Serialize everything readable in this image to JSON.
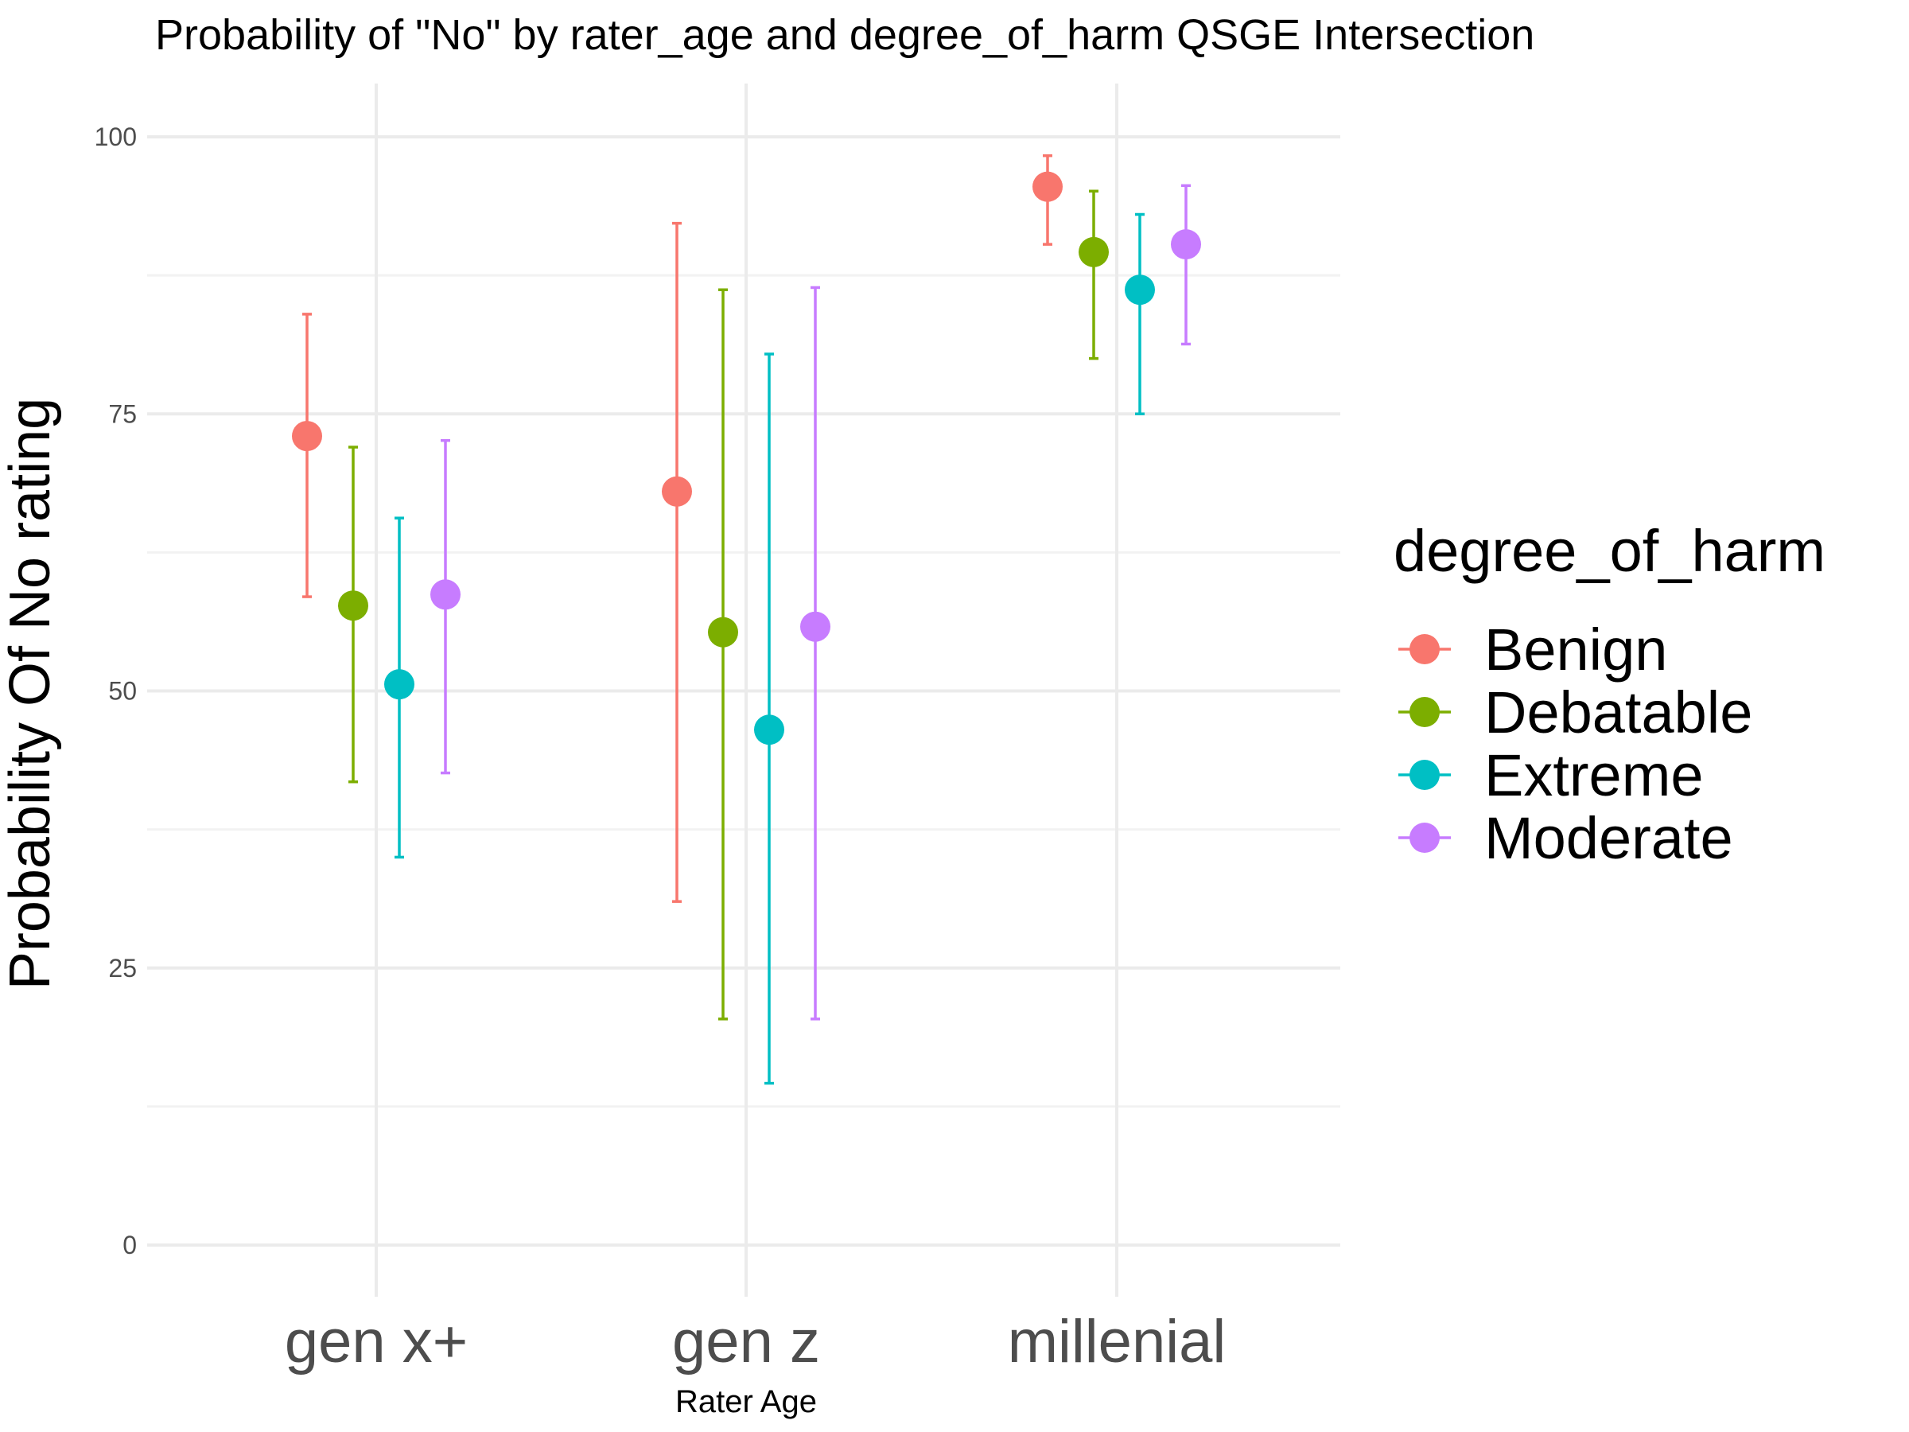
{
  "chart_data": {
    "type": "scatter",
    "title": "Probability of \"No\" by rater_age and  degree_of_harm  QSGE Intersection",
    "xlabel": "Rater Age",
    "ylabel": "Probability Of No rating",
    "categories": [
      "gen x+",
      "gen z",
      "millenial"
    ],
    "ylim": [
      -5,
      105
    ],
    "y_ticks": [
      0,
      25,
      50,
      75,
      100
    ],
    "grid": true,
    "legend_title": "degree_of_harm",
    "legend_position": "right",
    "series": [
      {
        "name": "Benign",
        "color": "#F8766D",
        "values": [
          73,
          68,
          95.5
        ],
        "lower": [
          58.5,
          31,
          90.3
        ],
        "upper": [
          84,
          92.2,
          98.3
        ]
      },
      {
        "name": "Debatable",
        "color": "#7CAE00",
        "values": [
          57.7,
          55.3,
          89.6
        ],
        "lower": [
          41.8,
          20.4,
          80
        ],
        "upper": [
          72,
          86.2,
          95.1
        ]
      },
      {
        "name": "Extreme",
        "color": "#00BFC4",
        "values": [
          50.6,
          46.5,
          86.2
        ],
        "lower": [
          35,
          14.6,
          75
        ],
        "upper": [
          65.6,
          80.4,
          93
        ]
      },
      {
        "name": "Moderate",
        "color": "#C77CFF",
        "values": [
          58.7,
          55.8,
          90.3
        ],
        "lower": [
          42.6,
          20.4,
          81.3
        ],
        "upper": [
          72.6,
          86.4,
          95.6
        ]
      }
    ]
  }
}
